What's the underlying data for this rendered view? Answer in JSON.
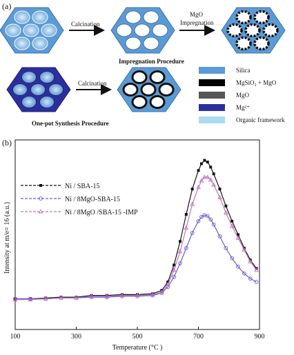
{
  "panel_a": {
    "label": "(a)",
    "impregnation": {
      "step1_label": "Calcination",
      "step2_label_line1": "MgO",
      "step2_label_line2": "Impregnation",
      "title": "Impregnation Procedure"
    },
    "onepot": {
      "step_label": "Calcination",
      "title": "One-pot Synthesis Procedure"
    },
    "legend": [
      {
        "label": "Silica",
        "color": "#5b9bd5"
      },
      {
        "label": "MgSiO₃ + MgO",
        "color": "#000000"
      },
      {
        "label": "MgO",
        "color": "#555555"
      },
      {
        "label": "Mg²⁺",
        "color": "#2b2f9e"
      },
      {
        "label": "Organic framework",
        "color": "#a9dcef"
      }
    ]
  },
  "panel_b": {
    "label": "(b)"
  },
  "chart_data": {
    "type": "line",
    "xlabel": "Temperature (°C )",
    "ylabel": "Intensity at m/e= 16 (a.u.)",
    "xlim": [
      100,
      900
    ],
    "ylim": [
      0,
      100
    ],
    "x_ticks": [
      100,
      300,
      500,
      700,
      900
    ],
    "grid": false,
    "legend_position": "top-left",
    "series": [
      {
        "name": "Ni / SBA-15",
        "color": "#111111",
        "marker": "square-filled",
        "x": [
          100,
          150,
          200,
          250,
          300,
          350,
          400,
          450,
          500,
          550,
          580,
          600,
          620,
          640,
          660,
          680,
          700,
          710,
          720,
          730,
          740,
          750,
          770,
          790,
          810,
          830,
          850,
          870,
          890
        ],
        "y": [
          10,
          10,
          10.5,
          11,
          11,
          12,
          12,
          12.5,
          12.5,
          13,
          15,
          20,
          30,
          44,
          60,
          75,
          86,
          90,
          92,
          91,
          88,
          84,
          75,
          65,
          56,
          48,
          40,
          33,
          28
        ]
      },
      {
        "name": "Ni / 8MgO-SBA-15",
        "color": "#6a5acd",
        "marker": "circle-open",
        "x": [
          100,
          150,
          200,
          250,
          300,
          350,
          400,
          450,
          500,
          550,
          580,
          600,
          620,
          640,
          660,
          680,
          700,
          710,
          720,
          730,
          740,
          750,
          770,
          790,
          810,
          830,
          850,
          870,
          890
        ],
        "y": [
          10,
          10,
          10,
          10.5,
          10.5,
          11,
          11,
          11.5,
          11.5,
          12,
          13.5,
          17,
          23,
          31,
          40,
          49,
          56,
          58.5,
          59.5,
          59,
          57,
          54,
          47,
          40,
          34,
          29,
          25,
          22,
          20
        ]
      },
      {
        "name": "Ni / 8MgO /SBA-15 -IMP",
        "color": "#c071c0",
        "marker": "triangle-open",
        "x": [
          100,
          150,
          200,
          250,
          300,
          350,
          400,
          450,
          500,
          550,
          580,
          600,
          620,
          640,
          660,
          680,
          700,
          710,
          720,
          730,
          740,
          750,
          770,
          790,
          810,
          830,
          850,
          870,
          890
        ],
        "y": [
          9.5,
          9.5,
          10,
          10.5,
          10.5,
          11.5,
          11.5,
          12,
          12,
          12.5,
          14,
          18.5,
          27,
          38,
          52,
          66,
          76,
          80,
          82,
          82,
          80.5,
          77.5,
          70,
          61,
          53,
          46,
          39,
          32,
          27
        ]
      }
    ]
  }
}
